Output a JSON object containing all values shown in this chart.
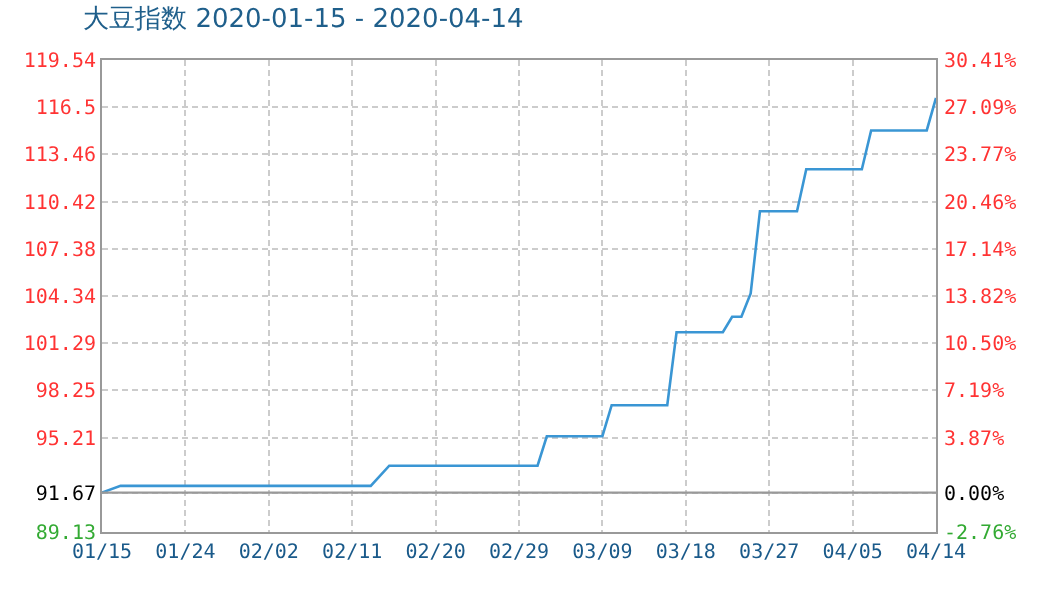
{
  "chart_data": {
    "type": "line",
    "title": "大豆指数 2020-01-15 - 2020-04-14",
    "x": [
      "2020-01-15",
      "2020-01-17",
      "2020-02-13",
      "2020-02-15",
      "2020-03-02",
      "2020-03-03",
      "2020-03-09",
      "2020-03-10",
      "2020-03-16",
      "2020-03-17",
      "2020-03-22",
      "2020-03-23",
      "2020-03-24",
      "2020-03-25",
      "2020-03-26",
      "2020-03-30",
      "2020-03-31",
      "2020-04-06",
      "2020-04-07",
      "2020-04-13",
      "2020-04-14"
    ],
    "series": [
      {
        "color": "#3a96d4",
        "values": [
          91.67,
          92.1,
          92.1,
          93.4,
          93.4,
          95.3,
          95.3,
          97.3,
          97.3,
          102.0,
          102.0,
          103.0,
          103.0,
          104.5,
          109.8,
          109.8,
          112.5,
          112.5,
          115.0,
          115.0,
          117.1
        ]
      }
    ],
    "xlim": [
      "2020-01-15",
      "2020-04-14"
    ],
    "xticks": [
      {
        "value": "2020-01-15",
        "label": "01/15"
      },
      {
        "value": "2020-01-24",
        "label": "01/24"
      },
      {
        "value": "2020-02-02",
        "label": "02/02"
      },
      {
        "value": "2020-02-11",
        "label": "02/11"
      },
      {
        "value": "2020-02-20",
        "label": "02/20"
      },
      {
        "value": "2020-02-29",
        "label": "02/29"
      },
      {
        "value": "2020-03-09",
        "label": "03/09"
      },
      {
        "value": "2020-03-18",
        "label": "03/18"
      },
      {
        "value": "2020-03-27",
        "label": "03/27"
      },
      {
        "value": "2020-04-05",
        "label": "04/05"
      },
      {
        "value": "2020-04-14",
        "label": "04/14"
      }
    ],
    "ylim": [
      89.13,
      119.54
    ],
    "yticks": [
      89.13,
      91.67,
      95.21,
      98.25,
      101.29,
      104.34,
      107.38,
      110.42,
      113.46,
      116.5,
      119.54
    ],
    "y2lim": [
      -2.76,
      30.41
    ],
    "y2ticks": [
      {
        "value": -2.76,
        "label": "-2.76%"
      },
      {
        "value": 0,
        "label": "0.00%"
      },
      {
        "value": 3.87,
        "label": "3.87%"
      },
      {
        "value": 7.19,
        "label": "7.19%"
      },
      {
        "value": 10.5,
        "label": "10.50%"
      },
      {
        "value": 13.82,
        "label": "13.82%"
      },
      {
        "value": 17.14,
        "label": "17.14%"
      },
      {
        "value": 20.46,
        "label": "20.46%"
      },
      {
        "value": 23.77,
        "label": "23.77%"
      },
      {
        "value": 27.09,
        "label": "27.09%"
      },
      {
        "value": 30.41,
        "label": "30.41%"
      }
    ],
    "ref_lines": [
      {
        "axis": "y",
        "value": 91.67,
        "color": "#999999",
        "line_style": "solid"
      }
    ],
    "grid": true,
    "marker": "none",
    "line_style": "solid"
  }
}
